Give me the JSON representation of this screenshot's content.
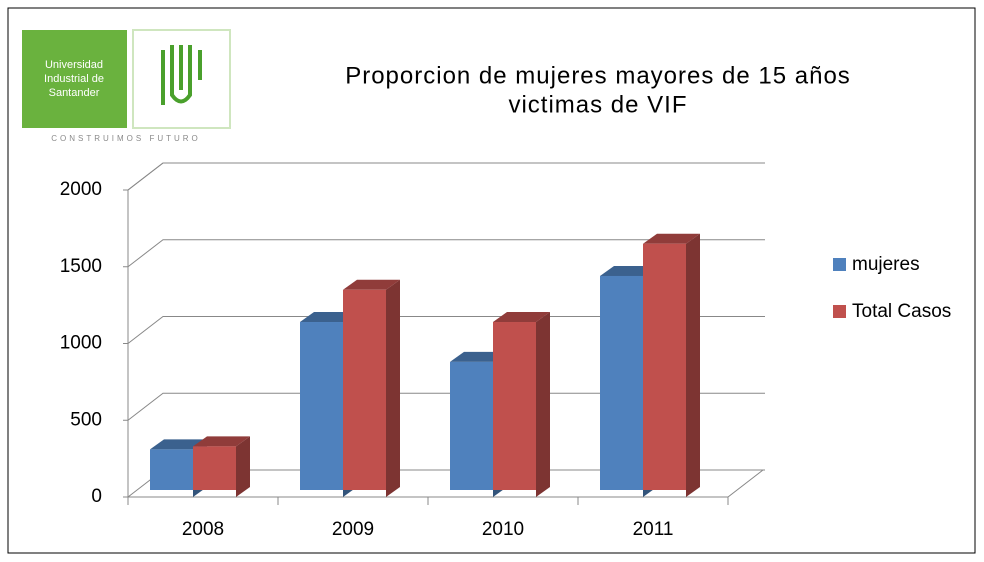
{
  "logo": {
    "name_lines": [
      "Universidad",
      "Industrial de",
      "Santander"
    ],
    "motto": "CONSTRUIMOS FUTURO"
  },
  "chart_data": {
    "type": "bar3d",
    "title_lines": [
      "Proporcion de mujeres mayores de 15 años",
      "victimas de VIF"
    ],
    "categories": [
      "2008",
      "2009",
      "2010",
      "2011"
    ],
    "series": [
      {
        "name": "mujeres",
        "color": "#4f81bd",
        "values": [
          310,
          1140,
          880,
          1440
        ]
      },
      {
        "name": "Total Casos",
        "color": "#c0504d",
        "values": [
          330,
          1350,
          1140,
          1650
        ]
      }
    ],
    "ylim": [
      0,
      2000
    ],
    "yticks": [
      0,
      500,
      1000,
      1500,
      2000
    ],
    "grid": true,
    "legend": "right"
  }
}
